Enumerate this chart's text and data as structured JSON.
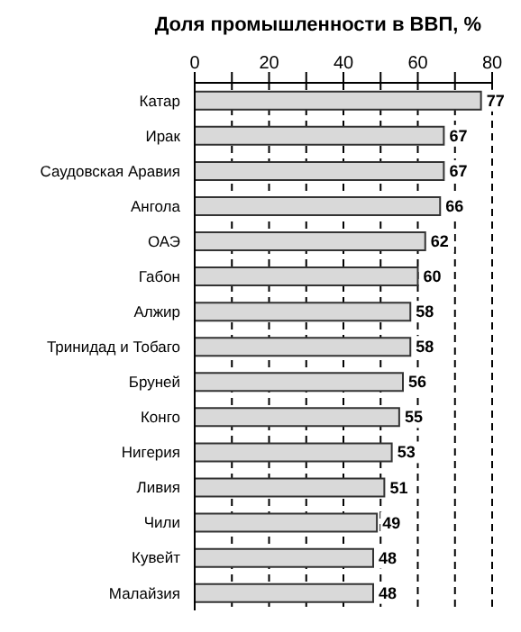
{
  "chart_data": {
    "type": "bar",
    "orientation": "horizontal",
    "title": "Доля промышленности в ВВП, %",
    "categories": [
      "Катар",
      "Ирак",
      "Саудовская Аравия",
      "Ангола",
      "ОАЭ",
      "Габон",
      "Алжир",
      "Тринидад и Тобаго",
      "Бруней",
      "Конго",
      "Нигерия",
      "Ливия",
      "Чили",
      "Кувейт",
      "Малайзия"
    ],
    "values": [
      77,
      67,
      67,
      66,
      62,
      60,
      58,
      58,
      56,
      55,
      53,
      51,
      49,
      48,
      48
    ],
    "color": "#d9d9d9",
    "xlim": [
      0,
      80
    ],
    "xticks": [
      0,
      {
        "value": 10,
        "label": null
      },
      20,
      {
        "value": 30,
        "label": null
      },
      40,
      {
        "value": 50,
        "label": null
      },
      60,
      {
        "value": 70,
        "label": null
      },
      80
    ],
    "grid": "x",
    "data_labels": true
  }
}
